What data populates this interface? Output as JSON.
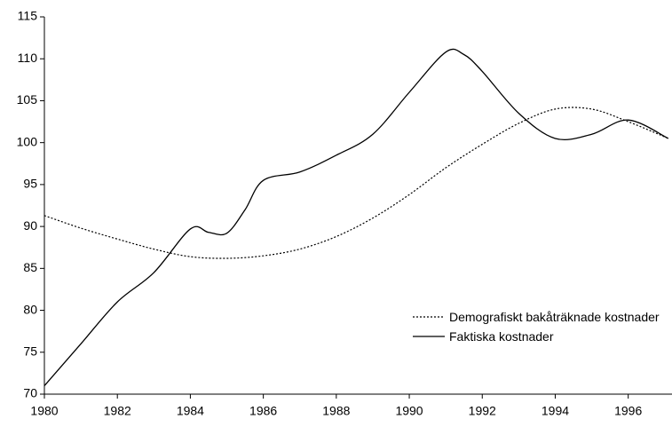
{
  "chart_data": {
    "type": "line",
    "xlim": [
      1980,
      1997.2
    ],
    "xticks": [
      1980,
      1982,
      1984,
      1986,
      1988,
      1990,
      1992,
      1994,
      1996
    ],
    "ylim": [
      70,
      115
    ],
    "yticks": [
      70,
      75,
      80,
      85,
      90,
      95,
      100,
      105,
      110,
      115
    ],
    "grid": false,
    "legend": "lower right",
    "series": [
      {
        "name": "Demografiskt bakåträknade kostnader",
        "color": "#000000",
        "dash": "dotted",
        "x": [
          1980,
          1981,
          1982,
          1983,
          1984,
          1985,
          1986,
          1987,
          1988,
          1989,
          1990,
          1991,
          1992,
          1993,
          1994,
          1995,
          1996,
          1997.1
        ],
        "values": [
          91.3,
          89.8,
          88.5,
          87.3,
          86.4,
          86.2,
          86.5,
          87.3,
          88.8,
          91,
          93.8,
          97,
          99.8,
          102.3,
          104,
          104,
          102.5,
          100.5
        ]
      },
      {
        "name": "Faktiska kostnader",
        "color": "#000000",
        "dash": "solid",
        "x": [
          1980,
          1981,
          1982,
          1983,
          1984,
          1984.5,
          1985,
          1985.5,
          1986,
          1987,
          1988,
          1989,
          1990,
          1991,
          1991.5,
          1992,
          1993,
          1994,
          1995,
          1996,
          1997.1
        ],
        "values": [
          71,
          76,
          81,
          84.5,
          89.7,
          89.3,
          89.2,
          92,
          95.5,
          96.5,
          98.5,
          101,
          106,
          110.8,
          110.5,
          108.5,
          103.5,
          100.5,
          101,
          102.7,
          100.5
        ]
      }
    ]
  }
}
